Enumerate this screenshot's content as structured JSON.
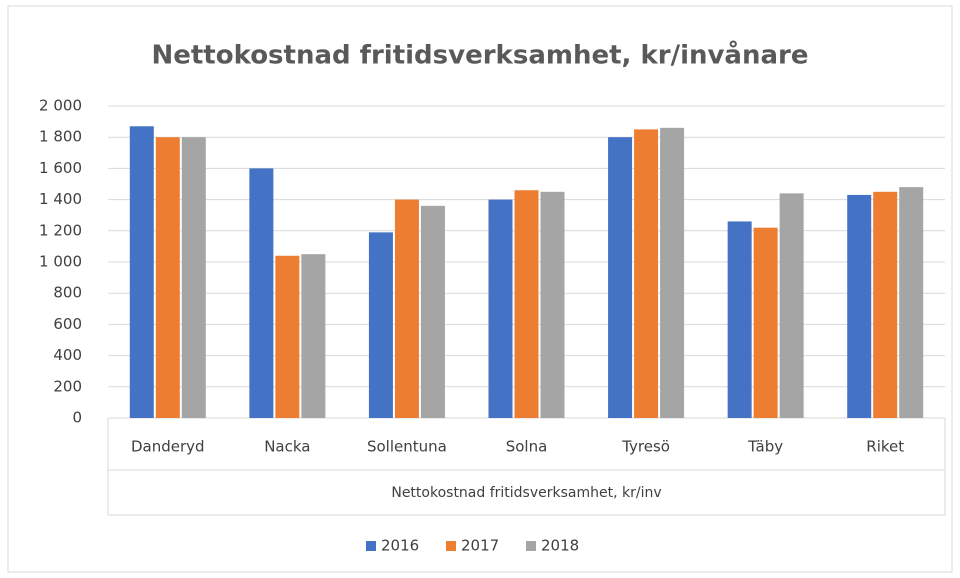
{
  "chart_data": {
    "type": "bar",
    "title": "Nettokostnad fritidsverksamhet, kr/invånare",
    "x_label": "Nettokostnad fritidsverksamhet, kr/inv",
    "categories": [
      "Danderyd",
      "Nacka",
      "Sollentuna",
      "Solna",
      "Tyresö",
      "Täby",
      "Riket"
    ],
    "series": [
      {
        "name": "2016",
        "color": "#4472c4",
        "values": [
          1870,
          1600,
          1190,
          1400,
          1800,
          1260,
          1430
        ]
      },
      {
        "name": "2017",
        "color": "#ed7d31",
        "values": [
          1800,
          1040,
          1400,
          1460,
          1850,
          1220,
          1450
        ]
      },
      {
        "name": "2018",
        "color": "#a5a5a5",
        "values": [
          1800,
          1050,
          1360,
          1450,
          1860,
          1440,
          1480
        ]
      }
    ],
    "ylim": [
      0,
      2000
    ],
    "yticks": [
      0,
      {
        "value": 200,
        "label": "200"
      },
      {
        "value": 400,
        "label": "400"
      },
      {
        "value": 600,
        "label": "600"
      },
      {
        "value": 800,
        "label": "800"
      },
      {
        "value": 1000,
        "label": "1 000"
      },
      {
        "value": 1200,
        "label": "1 200"
      },
      {
        "value": 1400,
        "label": "1 400"
      },
      {
        "value": 1600,
        "label": "1 600"
      },
      {
        "value": 1800,
        "label": "1 800"
      },
      {
        "value": 2000,
        "label": "2 000"
      }
    ],
    "grid": true,
    "legend": "bottom"
  }
}
